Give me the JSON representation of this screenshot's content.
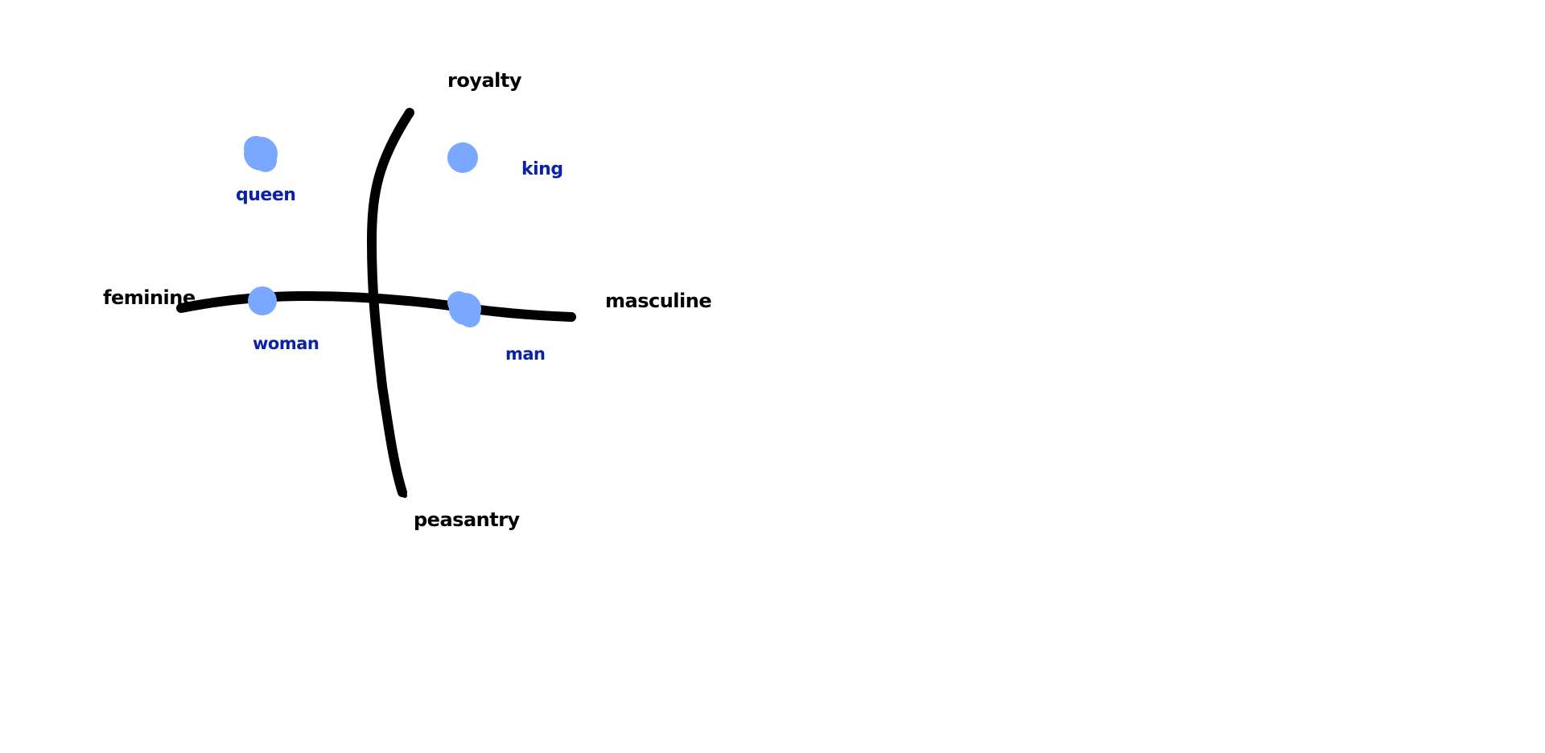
{
  "axes": {
    "top": "royalty",
    "bottom": "peasantry",
    "left": "feminine",
    "right": "masculine"
  },
  "points": [
    {
      "key": "queen",
      "label": "queen"
    },
    {
      "key": "king",
      "label": "king"
    },
    {
      "key": "woman",
      "label": "woman"
    },
    {
      "key": "man",
      "label": "man"
    }
  ],
  "colors": {
    "axis": "#000000",
    "point_fill": "#7aa7ff",
    "point_label": "#0b22a8",
    "axis_label": "#000000"
  }
}
